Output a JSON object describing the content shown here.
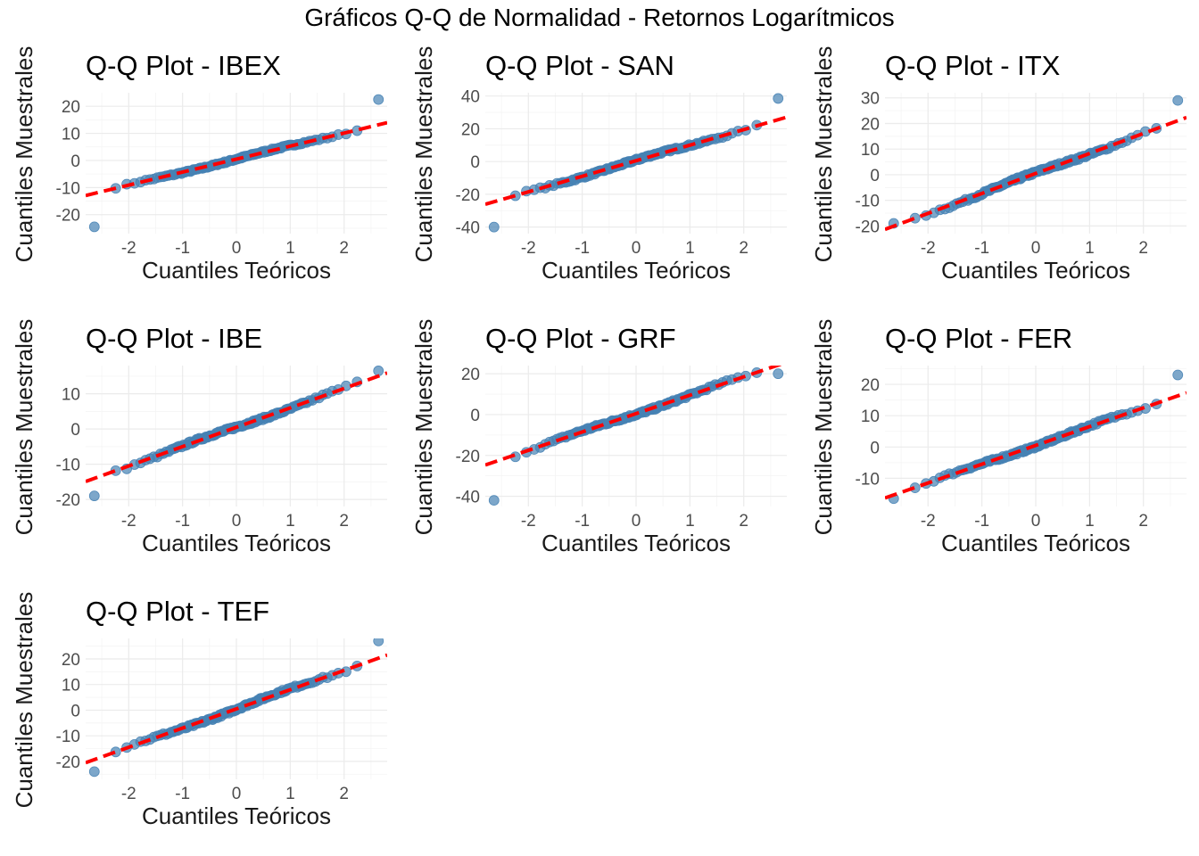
{
  "title": "Gráficos Q-Q de Normalidad - Retornos Logarítmicos",
  "colors": {
    "points": "#4682b4",
    "line": "#ff0000",
    "grid": "#ebebeb"
  },
  "chart_data": [
    {
      "type": "scatter",
      "title": "Q-Q Plot - IBEX",
      "xlabel": "Cuantiles Teóricos",
      "ylabel": "Cuantiles Muestrales",
      "xlim": [
        -2.8,
        2.8
      ],
      "ylim": [
        -27,
        25
      ],
      "xticks": [
        -2,
        -1,
        0,
        1,
        2
      ],
      "yticks": [
        -20,
        -10,
        0,
        10,
        20
      ],
      "line": {
        "intercept": 0.5,
        "slope": 4.8
      },
      "extremes": {
        "min": -24.5,
        "max": 22.5
      },
      "grid": true
    },
    {
      "type": "scatter",
      "title": "Q-Q Plot - SAN",
      "xlabel": "Cuantiles Teóricos",
      "ylabel": "Cuantiles Muestrales",
      "xlim": [
        -2.8,
        2.8
      ],
      "ylim": [
        -44,
        42
      ],
      "xticks": [
        -2,
        -1,
        0,
        1,
        2
      ],
      "yticks": [
        -40,
        -20,
        0,
        20,
        40
      ],
      "line": {
        "intercept": 0.5,
        "slope": 9.5
      },
      "extremes": {
        "min": -40,
        "max": 38.5
      },
      "grid": true
    },
    {
      "type": "scatter",
      "title": "Q-Q Plot - ITX",
      "xlabel": "Cuantiles Teóricos",
      "ylabel": "Cuantiles Muestrales",
      "xlim": [
        -2.8,
        2.8
      ],
      "ylim": [
        -23,
        32
      ],
      "xticks": [
        -2,
        -1,
        0,
        1,
        2
      ],
      "yticks": [
        -20,
        -10,
        0,
        10,
        20,
        30
      ],
      "line": {
        "intercept": 0.5,
        "slope": 7.8
      },
      "extremes": {
        "min": -19,
        "max": 29
      },
      "grid": true
    },
    {
      "type": "scatter",
      "title": "Q-Q Plot - IBE",
      "xlabel": "Cuantiles Teóricos",
      "ylabel": "Cuantiles Muestrales",
      "xlim": [
        -2.8,
        2.8
      ],
      "ylim": [
        -22,
        18
      ],
      "xticks": [
        -2,
        -1,
        0,
        1,
        2
      ],
      "yticks": [
        -20,
        -10,
        0,
        10
      ],
      "line": {
        "intercept": 0.5,
        "slope": 5.5
      },
      "extremes": {
        "min": -19,
        "max": 16.5
      },
      "grid": true
    },
    {
      "type": "scatter",
      "title": "Q-Q Plot - GRF",
      "xlabel": "Cuantiles Teóricos",
      "ylabel": "Cuantiles Muestrales",
      "xlim": [
        -2.8,
        2.8
      ],
      "ylim": [
        -45,
        24
      ],
      "xticks": [
        -2,
        -1,
        0,
        1,
        2
      ],
      "yticks": [
        -40,
        -20,
        0,
        20
      ],
      "line": {
        "intercept": 0.5,
        "slope": 9.0
      },
      "extremes": {
        "min": -42,
        "max": 20
      },
      "grid": true
    },
    {
      "type": "scatter",
      "title": "Q-Q Plot - FER",
      "xlabel": "Cuantiles Teóricos",
      "ylabel": "Cuantiles Muestrales",
      "xlim": [
        -2.8,
        2.8
      ],
      "ylim": [
        -19,
        26
      ],
      "xticks": [
        -2,
        -1,
        0,
        1,
        2
      ],
      "yticks": [
        -10,
        0,
        10,
        20
      ],
      "line": {
        "intercept": 0.5,
        "slope": 6.0
      },
      "extremes": {
        "min": -16.5,
        "max": 23
      },
      "grid": true
    },
    {
      "type": "scatter",
      "title": "Q-Q Plot - TEF",
      "xlabel": "Cuantiles Teóricos",
      "ylabel": "Cuantiles Muestrales",
      "xlim": [
        -2.8,
        2.8
      ],
      "ylim": [
        -27,
        28
      ],
      "xticks": [
        -2,
        -1,
        0,
        1,
        2
      ],
      "yticks": [
        -20,
        -10,
        0,
        10,
        20
      ],
      "line": {
        "intercept": 0.5,
        "slope": 7.5
      },
      "extremes": {
        "min": -24,
        "max": 27
      },
      "grid": true
    }
  ]
}
